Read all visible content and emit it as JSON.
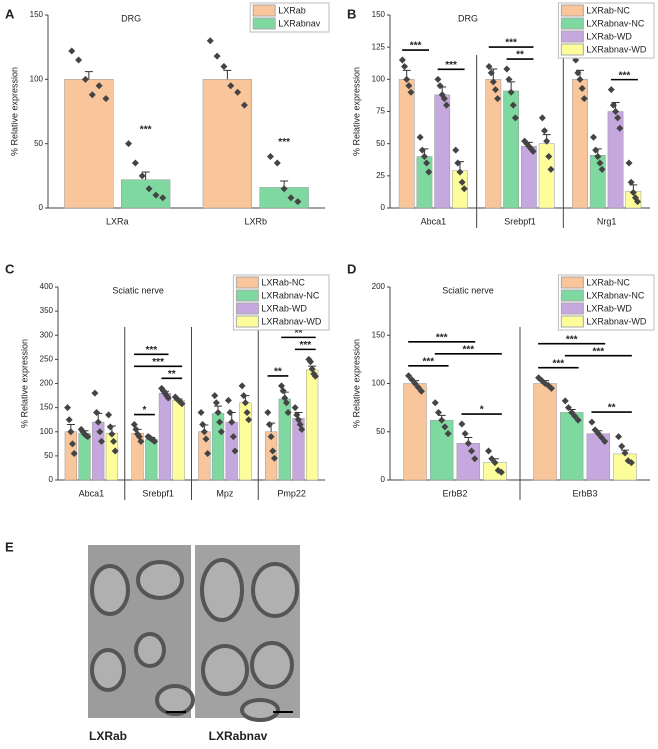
{
  "chart_data": [
    {
      "type": "bar",
      "panel_label": "A",
      "title": "DRG",
      "y_label": "% Relative expression",
      "categories": [
        "LXRa",
        "LXRb"
      ],
      "ylim": [
        0,
        150
      ],
      "yticks": [
        0,
        50,
        100,
        150
      ],
      "legend": "upper right",
      "separators": false,
      "series": [
        {
          "name": "LXRab",
          "color": "#f9c59b",
          "values": [
            100,
            100
          ],
          "errors": [
            6,
            7
          ],
          "points": [
            [
              122,
              115,
              100,
              88,
              95,
              85
            ],
            [
              130,
              118,
              110,
              95,
              90,
              80
            ]
          ]
        },
        {
          "name": "LXRabnav",
          "color": "#7fd8a0",
          "values": [
            22,
            16
          ],
          "errors": [
            6,
            5
          ],
          "points": [
            [
              50,
              35,
              25,
              15,
              10,
              8
            ],
            [
              40,
              35,
              15,
              8,
              5
            ]
          ]
        }
      ],
      "comparisons": [
        {
          "category": 0,
          "pair": [
            1,
            1
          ],
          "label": "***"
        },
        {
          "category": 1,
          "pair": [
            1,
            1
          ],
          "label": "***"
        }
      ]
    },
    {
      "type": "bar",
      "panel_label": "B",
      "title": "DRG",
      "y_label": "% Relative expression",
      "categories": [
        "Abca1",
        "Srebpf1",
        "Nrg1"
      ],
      "ylim": [
        0,
        150
      ],
      "yticks": [
        0,
        25,
        50,
        75,
        100,
        125,
        150
      ],
      "legend": "upper right",
      "separators": true,
      "series": [
        {
          "name": "LXRab-NC",
          "color": "#f9c59b",
          "values": [
            100,
            100,
            100
          ],
          "errors": [
            7,
            8,
            7
          ],
          "points": [
            [
              115,
              110,
              100,
              95,
              90
            ],
            [
              110,
              105,
              98,
              92,
              85
            ],
            [
              115,
              105,
              100,
              93,
              85
            ]
          ]
        },
        {
          "name": "LXRabnav-NC",
          "color": "#7fd8a0",
          "values": [
            40,
            91,
            41
          ],
          "errors": [
            6,
            7,
            5
          ],
          "points": [
            [
              55,
              45,
              40,
              35,
              28
            ],
            [
              108,
              100,
              90,
              80,
              70
            ],
            [
              55,
              45,
              40,
              35,
              30
            ]
          ]
        },
        {
          "name": "LXRab-WD",
          "color": "#c5a8dd",
          "values": [
            88,
            48,
            75
          ],
          "errors": [
            6,
            3,
            7
          ],
          "points": [
            [
              100,
              95,
              88,
              85,
              80
            ],
            [
              52,
              50,
              48,
              46,
              44
            ],
            [
              92,
              80,
              75,
              70,
              62
            ]
          ]
        },
        {
          "name": "LXRabnav-WD",
          "color": "#fdfd9b",
          "values": [
            29,
            50,
            13
          ],
          "errors": [
            7,
            7,
            5
          ],
          "points": [
            [
              45,
              35,
              28,
              20,
              15
            ],
            [
              70,
              60,
              52,
              40,
              30
            ],
            [
              35,
              20,
              12,
              8,
              5
            ]
          ]
        }
      ],
      "comparisons": [
        {
          "category": 0,
          "pair": [
            0,
            1
          ],
          "label": "***"
        },
        {
          "category": 0,
          "pair": [
            2,
            3
          ],
          "label": "***"
        },
        {
          "category": 1,
          "pair": [
            1,
            2
          ],
          "label": "**"
        },
        {
          "category": 1,
          "pair": [
            0,
            2
          ],
          "label": "***"
        },
        {
          "category": 2,
          "pair": [
            0,
            1
          ],
          "label": "***"
        },
        {
          "category": 2,
          "pair": [
            2,
            3
          ],
          "label": "***"
        },
        {
          "category": 2,
          "pair": [
            1,
            2
          ],
          "label": "**"
        },
        {
          "category": 2,
          "pair": [
            0,
            2
          ],
          "label": "*"
        }
      ]
    },
    {
      "type": "bar",
      "panel_label": "C",
      "title": "Sciatic nerve",
      "y_label": "% Relative expression",
      "categories": [
        "Abca1",
        "Srebpf1",
        "Mpz",
        "Pmp22"
      ],
      "ylim": [
        0,
        400
      ],
      "yticks": [
        0,
        50,
        100,
        150,
        200,
        250,
        300,
        350,
        400
      ],
      "legend": "upper right",
      "separators": true,
      "series": [
        {
          "name": "LXRab-NC",
          "color": "#f9c59b",
          "values": [
            100,
            97,
            100,
            100
          ],
          "errors": [
            15,
            8,
            14,
            18
          ],
          "points": [
            [
              150,
              125,
              100,
              75,
              55
            ],
            [
              115,
              105,
              95,
              90,
              80
            ],
            [
              140,
              115,
              100,
              85,
              55
            ],
            [
              140,
              115,
              90,
              60,
              45
            ]
          ]
        },
        {
          "name": "LXRabnav-NC",
          "color": "#7fd8a0",
          "values": [
            97,
            85,
            138,
            168
          ],
          "errors": [
            5,
            3,
            15,
            14
          ],
          "points": [
            [
              105,
              100,
              95,
              92,
              90
            ],
            [
              90,
              88,
              85,
              83,
              80
            ],
            [
              175,
              160,
              140,
              120,
              100
            ],
            [
              195,
              185,
              170,
              160,
              140
            ]
          ]
        },
        {
          "name": "LXRab-WD",
          "color": "#c5a8dd",
          "values": [
            120,
            180,
            120,
            128
          ],
          "errors": [
            18,
            4,
            20,
            12
          ],
          "points": [
            [
              180,
              140,
              120,
              100,
              80
            ],
            [
              190,
              185,
              180,
              175,
              170
            ],
            [
              165,
              140,
              120,
              90,
              60
            ],
            [
              150,
              135,
              125,
              115,
              105
            ]
          ]
        },
        {
          "name": "LXRabnav-WD",
          "color": "#fdfd9b",
          "values": [
            97,
            165,
            160,
            228
          ],
          "errors": [
            15,
            3,
            15,
            8
          ],
          "points": [
            [
              135,
              110,
              95,
              80,
              60
            ],
            [
              172,
              168,
              165,
              162,
              158
            ],
            [
              195,
              175,
              160,
              140,
              125
            ],
            [
              250,
              245,
              230,
              220,
              215
            ]
          ]
        }
      ],
      "comparisons": [
        {
          "category": 1,
          "pair": [
            0,
            1
          ],
          "label": "*"
        },
        {
          "category": 1,
          "pair": [
            2,
            3
          ],
          "label": "**"
        },
        {
          "category": 1,
          "pair": [
            0,
            3
          ],
          "label": "***"
        },
        {
          "category": 1,
          "pair": [
            0,
            2
          ],
          "label": "***"
        },
        {
          "category": 3,
          "pair": [
            0,
            1
          ],
          "label": "**"
        },
        {
          "category": 3,
          "pair": [
            2,
            3
          ],
          "label": "***"
        },
        {
          "category": 3,
          "pair": [
            1,
            3
          ],
          "label": "**"
        }
      ]
    },
    {
      "type": "bar",
      "panel_label": "D",
      "title": "Sciatic nerve",
      "y_label": "% Relative expression",
      "categories": [
        "ErbB2",
        "ErbB3"
      ],
      "ylim": [
        0,
        200
      ],
      "yticks": [
        0,
        50,
        100,
        150,
        200
      ],
      "legend": "upper right",
      "separators": true,
      "series": [
        {
          "name": "LXRab-NC",
          "color": "#f9c59b",
          "values": [
            100,
            100
          ],
          "errors": [
            3,
            3
          ],
          "points": [
            [
              108,
              104,
              100,
              96,
              92
            ],
            [
              106,
              103,
              100,
              98,
              95
            ]
          ]
        },
        {
          "name": "LXRabnav-NC",
          "color": "#7fd8a0",
          "values": [
            62,
            70
          ],
          "errors": [
            5,
            3
          ],
          "points": [
            [
              80,
              70,
              62,
              55,
              48
            ],
            [
              82,
              75,
              70,
              66,
              62
            ]
          ]
        },
        {
          "name": "LXRab-WD",
          "color": "#c5a8dd",
          "values": [
            38,
            48
          ],
          "errors": [
            6,
            3
          ],
          "points": [
            [
              58,
              48,
              38,
              30,
              22
            ],
            [
              60,
              52,
              48,
              44,
              40
            ]
          ]
        },
        {
          "name": "LXRabnav-WD",
          "color": "#fdfd9b",
          "values": [
            18,
            27
          ],
          "errors": [
            4,
            4
          ],
          "points": [
            [
              30,
              22,
              18,
              10,
              8
            ],
            [
              45,
              35,
              28,
              20,
              18
            ]
          ]
        }
      ],
      "comparisons": [
        {
          "category": 0,
          "pair": [
            0,
            1
          ],
          "label": "***"
        },
        {
          "category": 0,
          "pair": [
            2,
            3
          ],
          "label": "*"
        },
        {
          "category": 0,
          "pair": [
            1,
            3
          ],
          "label": "***"
        },
        {
          "category": 0,
          "pair": [
            0,
            2
          ],
          "label": "***"
        },
        {
          "category": 1,
          "pair": [
            0,
            1
          ],
          "label": "***"
        },
        {
          "category": 1,
          "pair": [
            2,
            3
          ],
          "label": "**"
        },
        {
          "category": 1,
          "pair": [
            1,
            3
          ],
          "label": "***"
        },
        {
          "category": 1,
          "pair": [
            0,
            2
          ],
          "label": "***"
        }
      ]
    }
  ],
  "image_panel": {
    "panel_label": "E",
    "captions": [
      "LXRab",
      "LXRabnav"
    ]
  }
}
